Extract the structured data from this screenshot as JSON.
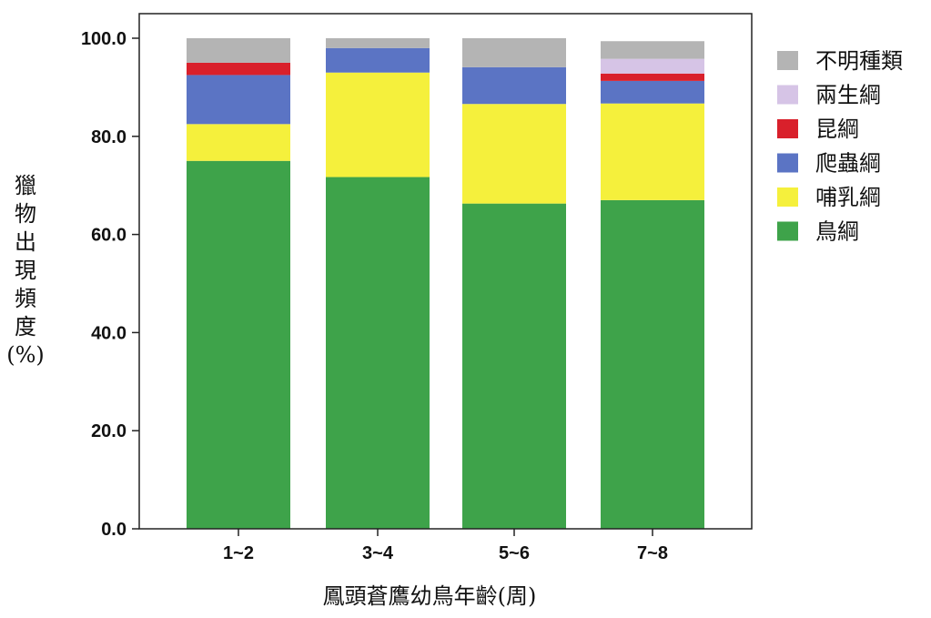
{
  "chart_data": {
    "type": "bar",
    "stacked": true,
    "categories": [
      "1~2",
      "3~4",
      "5~6",
      "7~8"
    ],
    "series": [
      {
        "name": "鳥綱",
        "color": "#3ea34a",
        "values": [
          75.0,
          71.7,
          66.3,
          67.0
        ]
      },
      {
        "name": "哺乳綱",
        "color": "#f5f03c",
        "values": [
          7.5,
          21.3,
          20.3,
          19.7
        ]
      },
      {
        "name": "爬蟲綱",
        "color": "#5b74c4",
        "values": [
          10.0,
          5.0,
          7.5,
          4.6
        ]
      },
      {
        "name": "昆綱",
        "color": "#d9202b",
        "values": [
          2.5,
          0.0,
          0.0,
          1.5
        ]
      },
      {
        "name": "兩生綱",
        "color": "#d6c4e6",
        "values": [
          0.0,
          0.0,
          0.0,
          3.0
        ]
      },
      {
        "name": "不明種類",
        "color": "#b4b4b4",
        "values": [
          5.0,
          2.0,
          5.9,
          3.6
        ]
      }
    ],
    "legend_order": [
      "不明種類",
      "兩生綱",
      "昆綱",
      "爬蟲綱",
      "哺乳綱",
      "鳥綱"
    ],
    "xlabel": "鳳頭蒼鷹幼鳥年齡(周)",
    "ylabel_lines": [
      "獵",
      "物",
      "出",
      "現",
      "頻",
      "度",
      "(%)"
    ],
    "ylim": [
      0,
      100
    ],
    "yticks": [
      "0.0",
      "20.0",
      "40.0",
      "60.0",
      "80.0",
      "100.0"
    ],
    "ytick_values": [
      0,
      20,
      40,
      60,
      80,
      100
    ],
    "grid": false,
    "legend_position": "right"
  }
}
